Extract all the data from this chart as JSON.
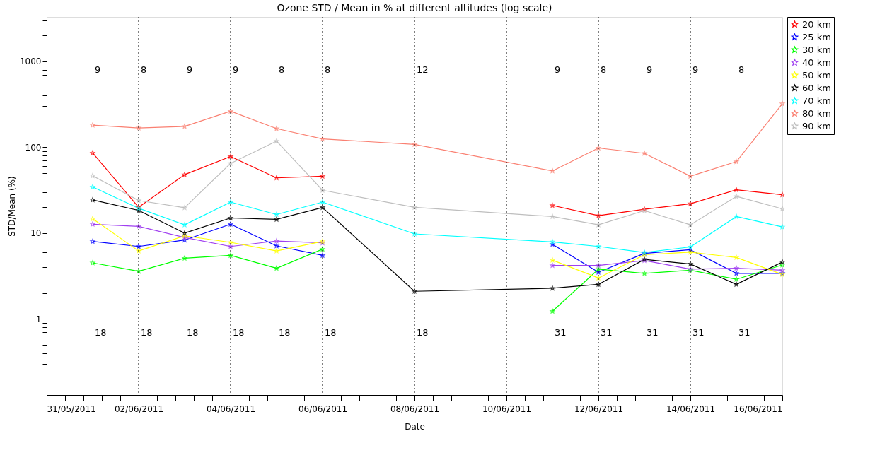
{
  "chart_data": {
    "type": "line",
    "title": "Ozone STD / Mean in % at different altitudes (log scale)",
    "xlabel": "Date",
    "ylabel": "STD/Mean (%)",
    "x": [
      "2011-06-01",
      "2011-06-02",
      "2011-06-03",
      "2011-06-04",
      "2011-06-05",
      "2011-06-06",
      "2011-06-08",
      "2011-06-11",
      "2011-06-12",
      "2011-06-13",
      "2011-06-14",
      "2011-06-15",
      "2011-06-16"
    ],
    "series": [
      {
        "name": "20 km",
        "color": "#ff0000",
        "values": [
          86,
          20,
          48,
          78,
          44,
          46,
          null,
          21,
          16,
          19,
          22,
          32,
          28
        ]
      },
      {
        "name": "25 km",
        "color": "#0000ff",
        "values": [
          8.0,
          7.0,
          8.3,
          12.7,
          7.1,
          5.5,
          null,
          7.4,
          3.5,
          5.8,
          6.4,
          3.4,
          3.4
        ]
      },
      {
        "name": "30 km",
        "color": "#00ff00",
        "values": [
          4.5,
          3.6,
          5.1,
          5.5,
          3.9,
          6.5,
          null,
          1.23,
          3.8,
          3.4,
          3.7,
          2.9,
          4.25
        ]
      },
      {
        "name": "40 km",
        "color": "#a040f0",
        "values": [
          12.7,
          12,
          8.9,
          7.0,
          8.1,
          7.7,
          null,
          4.2,
          4.2,
          4.8,
          3.8,
          3.9,
          3.7
        ]
      },
      {
        "name": "50 km",
        "color": "#ffff00",
        "values": [
          14.7,
          6.2,
          9.3,
          7.8,
          6.2,
          8.0,
          null,
          4.85,
          3.0,
          5.6,
          6.0,
          5.2,
          3.3
        ]
      },
      {
        "name": "60 km",
        "color": "#000000",
        "values": [
          24.4,
          18.4,
          10,
          15,
          14.5,
          19.9,
          2.1,
          2.28,
          2.53,
          4.94,
          4.37,
          2.53,
          4.6
        ]
      },
      {
        "name": "70 km",
        "color": "#00ffff",
        "values": [
          34.6,
          19.5,
          12.5,
          23,
          16.5,
          23,
          9.8,
          7.9,
          7.0,
          5.95,
          6.9,
          15.6,
          11.8
        ]
      },
      {
        "name": "80 km",
        "color": "#fa8072",
        "values": [
          181,
          168,
          175,
          263,
          165,
          125,
          108,
          53,
          98,
          85,
          46,
          68,
          322
        ]
      },
      {
        "name": "90 km",
        "color": "#bebebe",
        "values": [
          46.6,
          24,
          19.8,
          65,
          118,
          31.6,
          20,
          15.6,
          12.5,
          18.3,
          12.5,
          26.8,
          19.2
        ]
      }
    ],
    "log": "y",
    "marker": "star",
    "legend": "top right",
    "grid": false,
    "xlim": [
      "2011-05-31",
      "2011-06-16"
    ],
    "xticks": [
      {
        "value": "2011-05-31",
        "label": "31/05/2011"
      },
      {
        "value": "2011-05-31T09:36",
        "label": null
      },
      {
        "value": "2011-05-31T19:12",
        "label": null
      },
      {
        "value": "2011-06-01T04:48",
        "label": null
      },
      {
        "value": "2011-06-01T14:24",
        "label": null
      },
      {
        "value": "2011-06-02",
        "label": "02/06/2011"
      },
      {
        "value": "2011-06-02T09:36",
        "label": null
      },
      {
        "value": "2011-06-02T19:12",
        "label": null
      },
      {
        "value": "2011-06-03T04:48",
        "label": null
      },
      {
        "value": "2011-06-03T14:24",
        "label": null
      },
      {
        "value": "2011-06-04",
        "label": "04/06/2011"
      },
      {
        "value": "2011-06-04T09:36",
        "label": null
      },
      {
        "value": "2011-06-04T19:12",
        "label": null
      },
      {
        "value": "2011-06-05T04:48",
        "label": null
      },
      {
        "value": "2011-06-05T14:24",
        "label": null
      },
      {
        "value": "2011-06-06",
        "label": "06/06/2011"
      },
      {
        "value": "2011-06-06T09:36",
        "label": null
      },
      {
        "value": "2011-06-06T19:12",
        "label": null
      },
      {
        "value": "2011-06-07T04:48",
        "label": null
      },
      {
        "value": "2011-06-07T14:24",
        "label": null
      },
      {
        "value": "2011-06-08",
        "label": "08/06/2011"
      },
      {
        "value": "2011-06-08T09:36",
        "label": null
      },
      {
        "value": "2011-06-08T19:12",
        "label": null
      },
      {
        "value": "2011-06-09T04:48",
        "label": null
      },
      {
        "value": "2011-06-09T14:24",
        "label": null
      },
      {
        "value": "2011-06-10",
        "label": "10/06/2011"
      },
      {
        "value": "2011-06-10T09:36",
        "label": null
      },
      {
        "value": "2011-06-10T19:12",
        "label": null
      },
      {
        "value": "2011-06-11T04:48",
        "label": null
      },
      {
        "value": "2011-06-11T14:24",
        "label": null
      },
      {
        "value": "2011-06-12",
        "label": "12/06/2011"
      },
      {
        "value": "2011-06-12T09:36",
        "label": null
      },
      {
        "value": "2011-06-12T19:12",
        "label": null
      },
      {
        "value": "2011-06-13T04:48",
        "label": null
      },
      {
        "value": "2011-06-13T14:24",
        "label": null
      },
      {
        "value": "2011-06-14",
        "label": "14/06/2011"
      },
      {
        "value": "2011-06-14T09:36",
        "label": null
      },
      {
        "value": "2011-06-14T19:12",
        "label": null
      },
      {
        "value": "2011-06-15T04:48",
        "label": null
      },
      {
        "value": "2011-06-15T14:24",
        "label": null
      },
      {
        "value": "2011-06-16",
        "label": "16/06/2011"
      }
    ],
    "ylim": [
      0.13,
      3300
    ],
    "yticks": [
      {
        "value": 0.2,
        "label": null
      },
      {
        "value": 0.3,
        "label": null
      },
      {
        "value": 0.4,
        "label": null
      },
      {
        "value": 0.5,
        "label": null
      },
      {
        "value": 0.6,
        "label": null
      },
      {
        "value": 0.7,
        "label": null
      },
      {
        "value": 0.8,
        "label": null
      },
      {
        "value": 0.9,
        "label": null
      },
      1,
      {
        "value": 2,
        "label": null
      },
      {
        "value": 3,
        "label": null
      },
      {
        "value": 4,
        "label": null
      },
      {
        "value": 5,
        "label": null
      },
      {
        "value": 6,
        "label": null
      },
      {
        "value": 7,
        "label": null
      },
      {
        "value": 8,
        "label": null
      },
      {
        "value": 9,
        "label": null
      },
      10,
      {
        "value": 20,
        "label": null
      },
      {
        "value": 30,
        "label": null
      },
      {
        "value": 40,
        "label": null
      },
      {
        "value": 50,
        "label": null
      },
      {
        "value": 60,
        "label": null
      },
      {
        "value": 70,
        "label": null
      },
      {
        "value": 80,
        "label": null
      },
      {
        "value": 90,
        "label": null
      },
      100,
      {
        "value": 200,
        "label": null
      },
      {
        "value": 300,
        "label": null
      },
      {
        "value": 400,
        "label": null
      },
      {
        "value": 500,
        "label": null
      },
      {
        "value": 600,
        "label": null
      },
      {
        "value": 700,
        "label": null
      },
      {
        "value": 800,
        "label": null
      },
      {
        "value": 900,
        "label": null
      },
      1000,
      {
        "value": 2000,
        "label": null
      },
      {
        "value": 3000,
        "label": null
      }
    ],
    "ref_lines": [
      {
        "axis": "x",
        "value": "2011-06-02",
        "color": "#000000",
        "line_style": "dotted"
      },
      {
        "axis": "x",
        "value": "2011-06-04",
        "color": "#000000",
        "line_style": "dotted"
      },
      {
        "axis": "x",
        "value": "2011-06-06",
        "color": "#000000",
        "line_style": "dotted"
      },
      {
        "axis": "x",
        "value": "2011-06-08",
        "color": "#000000",
        "line_style": "dotted"
      },
      {
        "axis": "x",
        "value": "2011-06-10",
        "color": "#000000",
        "line_style": "dotted"
      },
      {
        "axis": "x",
        "value": "2011-06-12",
        "color": "#000000",
        "line_style": "dotted"
      },
      {
        "axis": "x",
        "value": "2011-06-14",
        "color": "#000000",
        "line_style": "dotted"
      }
    ],
    "annotations": [
      "9",
      "8",
      "9",
      "9",
      "8",
      "8",
      "12",
      "9",
      "8",
      "9",
      "9",
      "8",
      "18",
      "18",
      "18",
      "18",
      "18",
      "18",
      "18",
      "31",
      "31",
      "31",
      "31",
      "31"
    ]
  }
}
